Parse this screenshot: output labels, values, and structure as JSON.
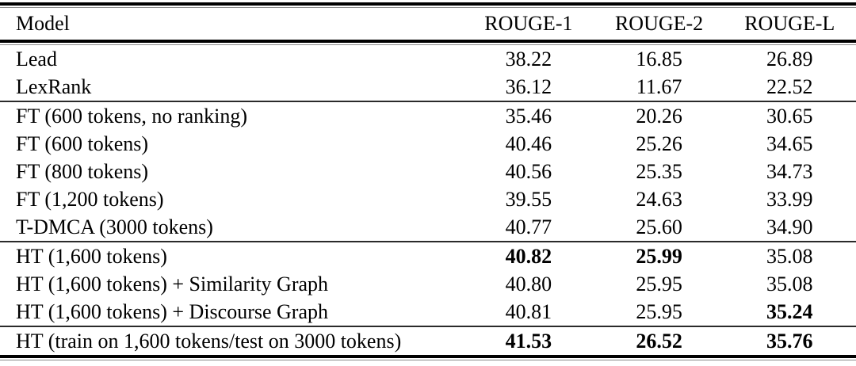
{
  "table": {
    "columns": [
      "Model",
      "ROUGE-1",
      "ROUGE-2",
      "ROUGE-L"
    ],
    "sections": [
      {
        "name": "baselines",
        "rows": [
          {
            "model": "Lead",
            "values": [
              "38.22",
              "16.85",
              "26.89"
            ],
            "bold": [
              false,
              false,
              false
            ]
          },
          {
            "model": "LexRank",
            "values": [
              "36.12",
              "11.67",
              "22.52"
            ],
            "bold": [
              false,
              false,
              false
            ]
          }
        ]
      },
      {
        "name": "flat-transformer",
        "rows": [
          {
            "model": "FT (600 tokens, no ranking)",
            "values": [
              "35.46",
              "20.26",
              "30.65"
            ],
            "bold": [
              false,
              false,
              false
            ]
          },
          {
            "model": "FT (600 tokens)",
            "values": [
              "40.46",
              "25.26",
              "34.65"
            ],
            "bold": [
              false,
              false,
              false
            ]
          },
          {
            "model": "FT (800 tokens)",
            "values": [
              "40.56",
              "25.35",
              "34.73"
            ],
            "bold": [
              false,
              false,
              false
            ]
          },
          {
            "model": "FT (1,200 tokens)",
            "values": [
              "39.55",
              "24.63",
              "33.99"
            ],
            "bold": [
              false,
              false,
              false
            ]
          },
          {
            "model": "T-DMCA (3000 tokens)",
            "values": [
              "40.77",
              "25.60",
              "34.90"
            ],
            "bold": [
              false,
              false,
              false
            ]
          }
        ]
      },
      {
        "name": "hierarchical-transformer",
        "rows": [
          {
            "model": "HT (1,600 tokens)",
            "values": [
              "40.82",
              "25.99",
              "35.08"
            ],
            "bold": [
              true,
              true,
              false
            ]
          },
          {
            "model": "HT (1,600 tokens) + Similarity Graph",
            "values": [
              "40.80",
              "25.95",
              "35.08"
            ],
            "bold": [
              false,
              false,
              false
            ]
          },
          {
            "model": "HT (1,600 tokens) + Discourse Graph",
            "values": [
              "40.81",
              "25.95",
              "35.24"
            ],
            "bold": [
              false,
              false,
              true
            ]
          }
        ]
      },
      {
        "name": "ht-train-test-mismatch",
        "rows": [
          {
            "model": "HT (train on 1,600 tokens/test on 3000 tokens)",
            "values": [
              "41.53",
              "26.52",
              "35.76"
            ],
            "bold": [
              true,
              true,
              true
            ]
          }
        ]
      }
    ]
  },
  "chart_data": {
    "type": "table",
    "columns": [
      "Model",
      "ROUGE-1",
      "ROUGE-2",
      "ROUGE-L"
    ],
    "rows": [
      [
        "Lead",
        38.22,
        16.85,
        26.89
      ],
      [
        "LexRank",
        36.12,
        11.67,
        22.52
      ],
      [
        "FT (600 tokens, no ranking)",
        35.46,
        20.26,
        30.65
      ],
      [
        "FT (600 tokens)",
        40.46,
        25.26,
        34.65
      ],
      [
        "FT (800 tokens)",
        40.56,
        25.35,
        34.73
      ],
      [
        "FT (1,200 tokens)",
        39.55,
        24.63,
        33.99
      ],
      [
        "T-DMCA (3000 tokens)",
        40.77,
        25.6,
        34.9
      ],
      [
        "HT (1,600 tokens)",
        40.82,
        25.99,
        35.08
      ],
      [
        "HT (1,600 tokens) + Similarity Graph",
        40.8,
        25.95,
        35.08
      ],
      [
        "HT (1,600 tokens) + Discourse Graph",
        40.81,
        25.95,
        35.24
      ],
      [
        "HT (train on 1,600 tokens/test on 3000 tokens)",
        41.53,
        26.52,
        35.76
      ]
    ]
  }
}
